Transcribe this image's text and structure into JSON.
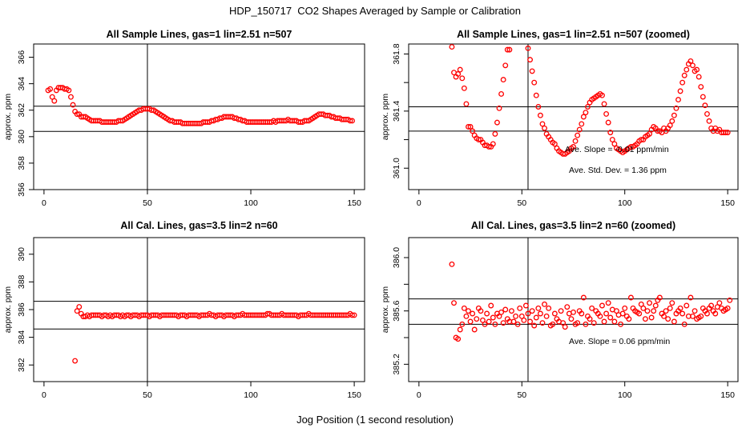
{
  "page": {
    "title": "HDP_150717  CO2 Shapes Averaged by Sample or Calibration",
    "xlabel": "Jog Position (1 second resolution)"
  },
  "colors": {
    "points": "#ff0000",
    "axes": "#000000"
  },
  "chart_data": [
    {
      "type": "scatter",
      "title": "All Sample Lines, gas=1 lin=2.51 n=507",
      "ylabel": "approx. ppm",
      "xlim": [
        -5,
        155
      ],
      "ylim": [
        356,
        367
      ],
      "xticks": [
        0,
        50,
        100,
        150
      ],
      "yticks": [
        356,
        358,
        360,
        362,
        364,
        366
      ],
      "vline_x": 50,
      "hlines": [
        360.4,
        362.3
      ],
      "annotations": [],
      "grid": false,
      "series": [
        {
          "marker": "open-circle",
          "x": [],
          "y": [],
          "points_by_x": {
            "start": 2,
            "y": [
              363.5,
              363.6,
              363.0,
              362.7,
              363.5,
              363.7,
              363.7,
              363.7,
              363.6,
              363.6,
              363.5,
              363.0,
              362.4,
              361.9,
              361.7,
              361.7,
              361.5,
              361.5,
              361.5,
              361.4,
              361.3,
              361.2,
              361.2,
              361.2,
              361.2,
              361.2,
              361.1,
              361.1,
              361.1,
              361.1,
              361.1,
              361.1,
              361.1,
              361.1,
              361.2,
              361.2,
              361.2,
              361.3,
              361.4,
              361.5,
              361.6,
              361.7,
              361.8,
              361.9,
              362.0,
              362.0,
              362.1,
              362.1,
              362.1,
              362.1,
              362.0,
              362.0,
              361.9,
              361.8,
              361.7,
              361.6,
              361.5,
              361.4,
              361.3,
              361.2,
              361.2,
              361.1,
              361.1,
              361.1,
              361.1,
              361.0,
              361.0,
              361.0,
              361.0,
              361.0,
              361.0,
              361.0,
              361.0,
              361.0,
              361.0,
              361.1,
              361.1,
              361.1,
              361.1,
              361.2,
              361.2,
              361.3,
              361.3,
              361.4,
              361.4,
              361.5,
              361.5,
              361.5,
              361.5,
              361.5,
              361.4,
              361.4,
              361.3,
              361.3,
              361.2,
              361.2,
              361.1,
              361.1,
              361.1,
              361.1,
              361.1,
              361.1,
              361.1,
              361.1,
              361.1,
              361.1,
              361.1,
              361.1,
              361.1,
              361.2,
              361.1,
              361.2,
              361.2,
              361.2,
              361.2,
              361.2,
              361.3,
              361.2,
              361.2,
              361.2,
              361.2,
              361.1,
              361.1,
              361.1,
              361.2,
              361.2,
              361.2,
              361.3,
              361.4,
              361.5,
              361.6,
              361.7,
              361.7,
              361.7,
              361.6,
              361.6,
              361.6,
              361.5,
              361.5,
              361.4,
              361.4,
              361.4,
              361.3,
              361.3,
              361.3,
              361.3,
              361.2,
              361.2
            ]
          }
        }
      ]
    },
    {
      "type": "scatter",
      "title": "All Sample Lines, gas=1 lin=2.51 n=507 (zoomed)",
      "ylabel": "approx. ppm",
      "xlim": [
        -5,
        155
      ],
      "ylim": [
        360.85,
        361.87
      ],
      "xticks": [
        0,
        50,
        100,
        150
      ],
      "yticks": [
        361.0,
        361.2,
        361.4,
        361.6,
        361.8
      ],
      "ytick_labels": [
        "361.0",
        "",
        "361.4",
        "",
        "361.8"
      ],
      "vline_x": 53,
      "hlines": [
        361.26,
        361.43
      ],
      "annotations": [
        {
          "label": "Ave. Slope =",
          "value": "-0.01",
          "unit": "ppm/min"
        },
        {
          "label": "Ave. Std. Dev. =",
          "value": "1.36",
          "unit": "ppm"
        }
      ],
      "grid": false,
      "series": [
        {
          "marker": "open-circle",
          "x": [
            16,
            17,
            18,
            19,
            20,
            21,
            22,
            23,
            24,
            25,
            26,
            27,
            28,
            29,
            30,
            31,
            32,
            33,
            34,
            35,
            36,
            37,
            38,
            39,
            40,
            41,
            42,
            43,
            44,
            53,
            54,
            55,
            56,
            57,
            58,
            59,
            60,
            61,
            62,
            63,
            64,
            65,
            66,
            67,
            68,
            69,
            70,
            71,
            72,
            73,
            74,
            75,
            76,
            77,
            78,
            79,
            80,
            81,
            82,
            83,
            84,
            85,
            86,
            87,
            88,
            89,
            90,
            91,
            92,
            93,
            94,
            95,
            96,
            97,
            98,
            99,
            100,
            101,
            102,
            103,
            104,
            105,
            106,
            107,
            108,
            109,
            110,
            111,
            112,
            113,
            114,
            115,
            116,
            117,
            118,
            119,
            120,
            121,
            122,
            123,
            124,
            125,
            126,
            127,
            128,
            129,
            130,
            131,
            132,
            133,
            134,
            135,
            136,
            137,
            138,
            139,
            140,
            141,
            142,
            143,
            144,
            145,
            146,
            147,
            148,
            149,
            150
          ],
          "y": [
            361.85,
            361.67,
            361.64,
            361.66,
            361.69,
            361.63,
            361.56,
            361.45,
            361.29,
            361.29,
            361.26,
            361.23,
            361.21,
            361.2,
            361.2,
            361.18,
            361.16,
            361.16,
            361.15,
            361.15,
            361.17,
            361.24,
            361.32,
            361.42,
            361.52,
            361.62,
            361.72,
            361.83,
            361.83,
            361.84,
            361.76,
            361.68,
            361.6,
            361.51,
            361.43,
            361.37,
            361.31,
            361.28,
            361.24,
            361.22,
            361.2,
            361.18,
            361.17,
            361.14,
            361.12,
            361.11,
            361.1,
            361.1,
            361.11,
            361.12,
            361.14,
            361.15,
            361.19,
            361.23,
            361.27,
            361.31,
            361.36,
            361.39,
            361.43,
            361.46,
            361.48,
            361.49,
            361.5,
            361.51,
            361.52,
            361.51,
            361.45,
            361.38,
            361.32,
            361.25,
            361.2,
            361.17,
            361.14,
            361.13,
            361.12,
            361.11,
            361.12,
            361.13,
            361.14,
            361.15,
            361.15,
            361.16,
            361.17,
            361.19,
            361.2,
            361.2,
            361.22,
            361.23,
            361.24,
            361.27,
            361.29,
            361.28,
            361.26,
            361.26,
            361.25,
            361.28,
            361.26,
            361.28,
            361.3,
            361.33,
            361.37,
            361.42,
            361.48,
            361.54,
            361.6,
            361.65,
            361.69,
            361.73,
            361.75,
            361.72,
            361.68,
            361.69,
            361.64,
            361.57,
            361.5,
            361.44,
            361.38,
            361.33,
            361.28,
            361.26,
            361.28,
            361.26,
            361.27,
            361.25,
            361.25,
            361.25,
            361.25
          ]
        }
      ]
    },
    {
      "type": "scatter",
      "title": "All Cal. Lines, gas=3.5 lin=2 n=60",
      "ylabel": "approx. ppm",
      "xlim": [
        -5,
        155
      ],
      "ylim": [
        380.8,
        391.2
      ],
      "xticks": [
        0,
        50,
        100,
        150
      ],
      "yticks": [
        382,
        384,
        386,
        388,
        390
      ],
      "vline_x": 50,
      "hlines": [
        384.6,
        386.6
      ],
      "annotations": [],
      "grid": false,
      "series": [
        {
          "marker": "open-circle",
          "x": [],
          "y": [],
          "points_by_x": {
            "start": 15,
            "y": [
              382.3,
              385.9,
              386.2,
              385.7,
              385.5,
              385.5,
              385.6,
              385.5,
              385.6,
              385.6,
              385.6,
              385.6,
              385.6,
              385.5,
              385.6,
              385.6,
              385.5,
              385.6,
              385.5,
              385.6,
              385.6,
              385.6,
              385.5,
              385.6,
              385.5,
              385.6,
              385.6,
              385.5,
              385.6,
              385.6,
              385.6,
              385.5,
              385.6,
              385.6,
              385.6,
              385.6,
              385.5,
              385.6,
              385.6,
              385.6,
              385.6,
              385.5,
              385.6,
              385.6,
              385.6,
              385.6,
              385.6,
              385.6,
              385.6,
              385.6,
              385.5,
              385.6,
              385.6,
              385.6,
              385.5,
              385.6,
              385.6,
              385.6,
              385.6,
              385.6,
              385.5,
              385.6,
              385.6,
              385.6,
              385.6,
              385.7,
              385.6,
              385.6,
              385.5,
              385.6,
              385.6,
              385.6,
              385.5,
              385.6,
              385.6,
              385.6,
              385.6,
              385.5,
              385.6,
              385.6,
              385.6,
              385.7,
              385.6,
              385.6,
              385.6,
              385.6,
              385.6,
              385.6,
              385.6,
              385.6,
              385.6,
              385.6,
              385.6,
              385.7,
              385.7,
              385.6,
              385.6,
              385.6,
              385.6,
              385.6,
              385.7,
              385.6,
              385.6,
              385.6,
              385.6,
              385.6,
              385.6,
              385.6,
              385.5,
              385.6,
              385.6,
              385.6,
              385.6,
              385.7,
              385.6,
              385.6,
              385.6,
              385.6,
              385.6,
              385.6,
              385.6,
              385.6,
              385.6,
              385.6,
              385.6,
              385.6,
              385.6,
              385.6,
              385.6,
              385.6,
              385.6,
              385.6,
              385.6,
              385.7,
              385.6,
              385.6
            ]
          }
        }
      ]
    },
    {
      "type": "scatter",
      "title": "All Cal. Lines, gas=3.5 lin=2 n=60 (zoomed)",
      "ylabel": "approx. ppm",
      "xlim": [
        -5,
        155
      ],
      "ylim": [
        385.07,
        386.15
      ],
      "xticks": [
        0,
        50,
        100,
        150
      ],
      "yticks": [
        385.2,
        385.4,
        385.6,
        385.8,
        386.0
      ],
      "ytick_labels": [
        "385.2",
        "",
        "385.6",
        "",
        "386.0"
      ],
      "vline_x": 53,
      "hlines": [
        385.5,
        385.69
      ],
      "annotations": [
        {
          "label": "Ave. Slope =",
          "value": "0.06",
          "unit": "ppm/min"
        }
      ],
      "grid": false,
      "series": [
        {
          "marker": "open-circle",
          "x": [],
          "y": [],
          "points_by_x": {
            "start": 16,
            "y": [
              385.95,
              385.66,
              385.4,
              385.39,
              385.46,
              385.5,
              385.62,
              385.56,
              385.6,
              385.52,
              385.58,
              385.46,
              385.54,
              385.62,
              385.6,
              385.53,
              385.5,
              385.58,
              385.52,
              385.64,
              385.55,
              385.5,
              385.58,
              385.56,
              385.59,
              385.51,
              385.61,
              385.54,
              385.52,
              385.6,
              385.52,
              385.56,
              385.5,
              385.62,
              385.56,
              385.53,
              385.64,
              385.58,
              385.52,
              385.6,
              385.49,
              385.55,
              385.62,
              385.58,
              385.51,
              385.65,
              385.56,
              385.62,
              385.49,
              385.5,
              385.58,
              385.54,
              385.52,
              385.6,
              385.51,
              385.48,
              385.63,
              385.58,
              385.54,
              385.59,
              385.5,
              385.51,
              385.6,
              385.58,
              385.7,
              385.5,
              385.56,
              385.54,
              385.62,
              385.51,
              385.6,
              385.58,
              385.56,
              385.64,
              385.52,
              385.58,
              385.66,
              385.55,
              385.61,
              385.52,
              385.6,
              385.57,
              385.5,
              385.58,
              385.62,
              385.56,
              385.54,
              385.7,
              385.62,
              385.6,
              385.59,
              385.58,
              385.65,
              385.62,
              385.54,
              385.6,
              385.66,
              385.55,
              385.6,
              385.64,
              385.68,
              385.7,
              385.58,
              385.56,
              385.6,
              385.54,
              385.62,
              385.66,
              385.52,
              385.58,
              385.6,
              385.62,
              385.58,
              385.5,
              385.64,
              385.56,
              385.7,
              385.56,
              385.6,
              385.54,
              385.55,
              385.56,
              385.62,
              385.6,
              385.58,
              385.62,
              385.64,
              385.6,
              385.58,
              385.63,
              385.66,
              385.62,
              385.6,
              385.61,
              385.62,
              385.68
            ]
          }
        }
      ]
    }
  ]
}
